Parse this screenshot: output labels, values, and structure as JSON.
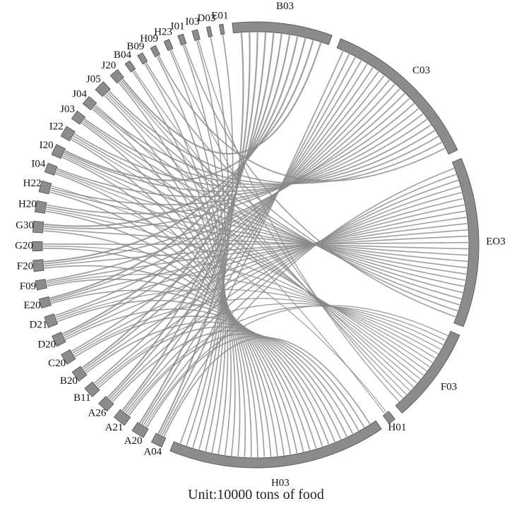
{
  "caption": "Unit:10000 tons of food",
  "colors": {
    "arc_fill": "#8c8c8c",
    "arc_stroke": "#5e5e5e",
    "ribbon": "#8a8a8a",
    "text": "#111111"
  },
  "chart_data": {
    "type": "chord",
    "nodes": [
      {
        "label": "B03",
        "role": "sink",
        "weight": 54
      },
      {
        "label": "C03",
        "role": "sink",
        "weight": 88
      },
      {
        "label": "EO3",
        "role": "sink",
        "weight": 92
      },
      {
        "label": "F03",
        "role": "sink",
        "weight": 52
      },
      {
        "label": "H01",
        "role": "sink",
        "weight": 4
      },
      {
        "label": "H03",
        "role": "sink",
        "weight": 118
      },
      {
        "label": "A04",
        "role": "source",
        "weight": 6
      },
      {
        "label": "A20",
        "role": "source",
        "weight": 7
      },
      {
        "label": "A21",
        "role": "source",
        "weight": 7
      },
      {
        "label": "A26",
        "role": "source",
        "weight": 6
      },
      {
        "label": "B11",
        "role": "source",
        "weight": 6
      },
      {
        "label": "B20",
        "role": "source",
        "weight": 6
      },
      {
        "label": "C20",
        "role": "source",
        "weight": 6
      },
      {
        "label": "D20",
        "role": "source",
        "weight": 6
      },
      {
        "label": "D21",
        "role": "source",
        "weight": 6
      },
      {
        "label": "E20",
        "role": "source",
        "weight": 5
      },
      {
        "label": "F09",
        "role": "source",
        "weight": 5
      },
      {
        "label": "F20",
        "role": "source",
        "weight": 6
      },
      {
        "label": "G20",
        "role": "source",
        "weight": 5
      },
      {
        "label": "G30",
        "role": "source",
        "weight": 6
      },
      {
        "label": "H20",
        "role": "source",
        "weight": 6
      },
      {
        "label": "H22",
        "role": "source",
        "weight": 6
      },
      {
        "label": "I04",
        "role": "source",
        "weight": 5
      },
      {
        "label": "I20",
        "role": "source",
        "weight": 6
      },
      {
        "label": "I22",
        "role": "source",
        "weight": 6
      },
      {
        "label": "J03",
        "role": "source",
        "weight": 5
      },
      {
        "label": "J04",
        "role": "source",
        "weight": 5
      },
      {
        "label": "J05",
        "role": "source",
        "weight": 6
      },
      {
        "label": "J20",
        "role": "source",
        "weight": 5
      },
      {
        "label": "B04",
        "role": "source",
        "weight": 3
      },
      {
        "label": "B09",
        "role": "source",
        "weight": 3
      },
      {
        "label": "H09",
        "role": "source",
        "weight": 3
      },
      {
        "label": "H23",
        "role": "source",
        "weight": 3
      },
      {
        "label": "I01",
        "role": "source",
        "weight": 3
      },
      {
        "label": "I03",
        "role": "source",
        "weight": 3
      },
      {
        "label": "D03",
        "role": "source",
        "weight": 2
      },
      {
        "label": "E01",
        "role": "source",
        "weight": 2
      }
    ],
    "links": [
      [
        "A04",
        "H03"
      ],
      [
        "A04",
        "EO3"
      ],
      [
        "A04",
        "C03"
      ],
      [
        "A04",
        "B03"
      ],
      [
        "A20",
        "H03"
      ],
      [
        "A20",
        "F03"
      ],
      [
        "A20",
        "EO3"
      ],
      [
        "A20",
        "C03"
      ],
      [
        "A20",
        "B03"
      ],
      [
        "A21",
        "H03"
      ],
      [
        "A21",
        "F03"
      ],
      [
        "A21",
        "EO3"
      ],
      [
        "A21",
        "C03"
      ],
      [
        "A21",
        "B03"
      ],
      [
        "A26",
        "H03"
      ],
      [
        "A26",
        "EO3"
      ],
      [
        "A26",
        "C03"
      ],
      [
        "A26",
        "B03"
      ],
      [
        "B11",
        "H03"
      ],
      [
        "B11",
        "F03"
      ],
      [
        "B11",
        "EO3"
      ],
      [
        "B11",
        "C03"
      ],
      [
        "B20",
        "H03"
      ],
      [
        "B20",
        "EO3"
      ],
      [
        "B20",
        "C03"
      ],
      [
        "B20",
        "B03"
      ],
      [
        "C20",
        "H03"
      ],
      [
        "C20",
        "F03"
      ],
      [
        "C20",
        "EO3"
      ],
      [
        "C20",
        "C03"
      ],
      [
        "D20",
        "H03"
      ],
      [
        "D20",
        "EO3"
      ],
      [
        "D20",
        "C03"
      ],
      [
        "D20",
        "B03"
      ],
      [
        "D21",
        "H03"
      ],
      [
        "D21",
        "F03"
      ],
      [
        "D21",
        "EO3"
      ],
      [
        "D21",
        "C03"
      ],
      [
        "E20",
        "H03"
      ],
      [
        "E20",
        "EO3"
      ],
      [
        "E20",
        "C03"
      ],
      [
        "E20",
        "B03"
      ],
      [
        "F09",
        "H03"
      ],
      [
        "F09",
        "F03"
      ],
      [
        "F09",
        "EO3"
      ],
      [
        "F09",
        "C03"
      ],
      [
        "F20",
        "H03"
      ],
      [
        "F20",
        "EO3"
      ],
      [
        "F20",
        "C03"
      ],
      [
        "F20",
        "B03"
      ],
      [
        "G20",
        "H03"
      ],
      [
        "G20",
        "F03"
      ],
      [
        "G20",
        "EO3"
      ],
      [
        "G30",
        "H03"
      ],
      [
        "G30",
        "EO3"
      ],
      [
        "G30",
        "C03"
      ],
      [
        "G30",
        "B03"
      ],
      [
        "H20",
        "H03"
      ],
      [
        "H20",
        "F03"
      ],
      [
        "H20",
        "EO3"
      ],
      [
        "H20",
        "C03"
      ],
      [
        "H22",
        "H03"
      ],
      [
        "H22",
        "EO3"
      ],
      [
        "H22",
        "C03"
      ],
      [
        "H22",
        "H01"
      ],
      [
        "I04",
        "H03"
      ],
      [
        "I04",
        "F03"
      ],
      [
        "I04",
        "EO3"
      ],
      [
        "I04",
        "C03"
      ],
      [
        "I20",
        "H03"
      ],
      [
        "I20",
        "F03"
      ],
      [
        "I20",
        "EO3"
      ],
      [
        "I20",
        "C03"
      ],
      [
        "I20",
        "B03"
      ],
      [
        "I22",
        "H03"
      ],
      [
        "I22",
        "F03"
      ],
      [
        "I22",
        "EO3"
      ],
      [
        "I22",
        "C03"
      ],
      [
        "J03",
        "H03"
      ],
      [
        "J03",
        "F03"
      ],
      [
        "J03",
        "EO3"
      ],
      [
        "J03",
        "C03"
      ],
      [
        "J04",
        "H03"
      ],
      [
        "J04",
        "EO3"
      ],
      [
        "J04",
        "C03"
      ],
      [
        "J04",
        "H01"
      ],
      [
        "J05",
        "H03"
      ],
      [
        "J05",
        "F03"
      ],
      [
        "J05",
        "EO3"
      ],
      [
        "J05",
        "C03"
      ],
      [
        "J20",
        "H03"
      ],
      [
        "J20",
        "F03"
      ],
      [
        "J20",
        "EO3"
      ],
      [
        "J20",
        "B03"
      ],
      [
        "B04",
        "H03"
      ],
      [
        "B04",
        "F03"
      ],
      [
        "B09",
        "H03"
      ],
      [
        "B09",
        "EO3"
      ],
      [
        "H09",
        "H03"
      ],
      [
        "H09",
        "C03"
      ],
      [
        "H23",
        "H03"
      ],
      [
        "H23",
        "F03"
      ],
      [
        "I01",
        "H03"
      ],
      [
        "I01",
        "EO3"
      ],
      [
        "I03",
        "H03"
      ],
      [
        "I03",
        "F03"
      ],
      [
        "D03",
        "H03"
      ],
      [
        "E01",
        "H03"
      ]
    ]
  }
}
